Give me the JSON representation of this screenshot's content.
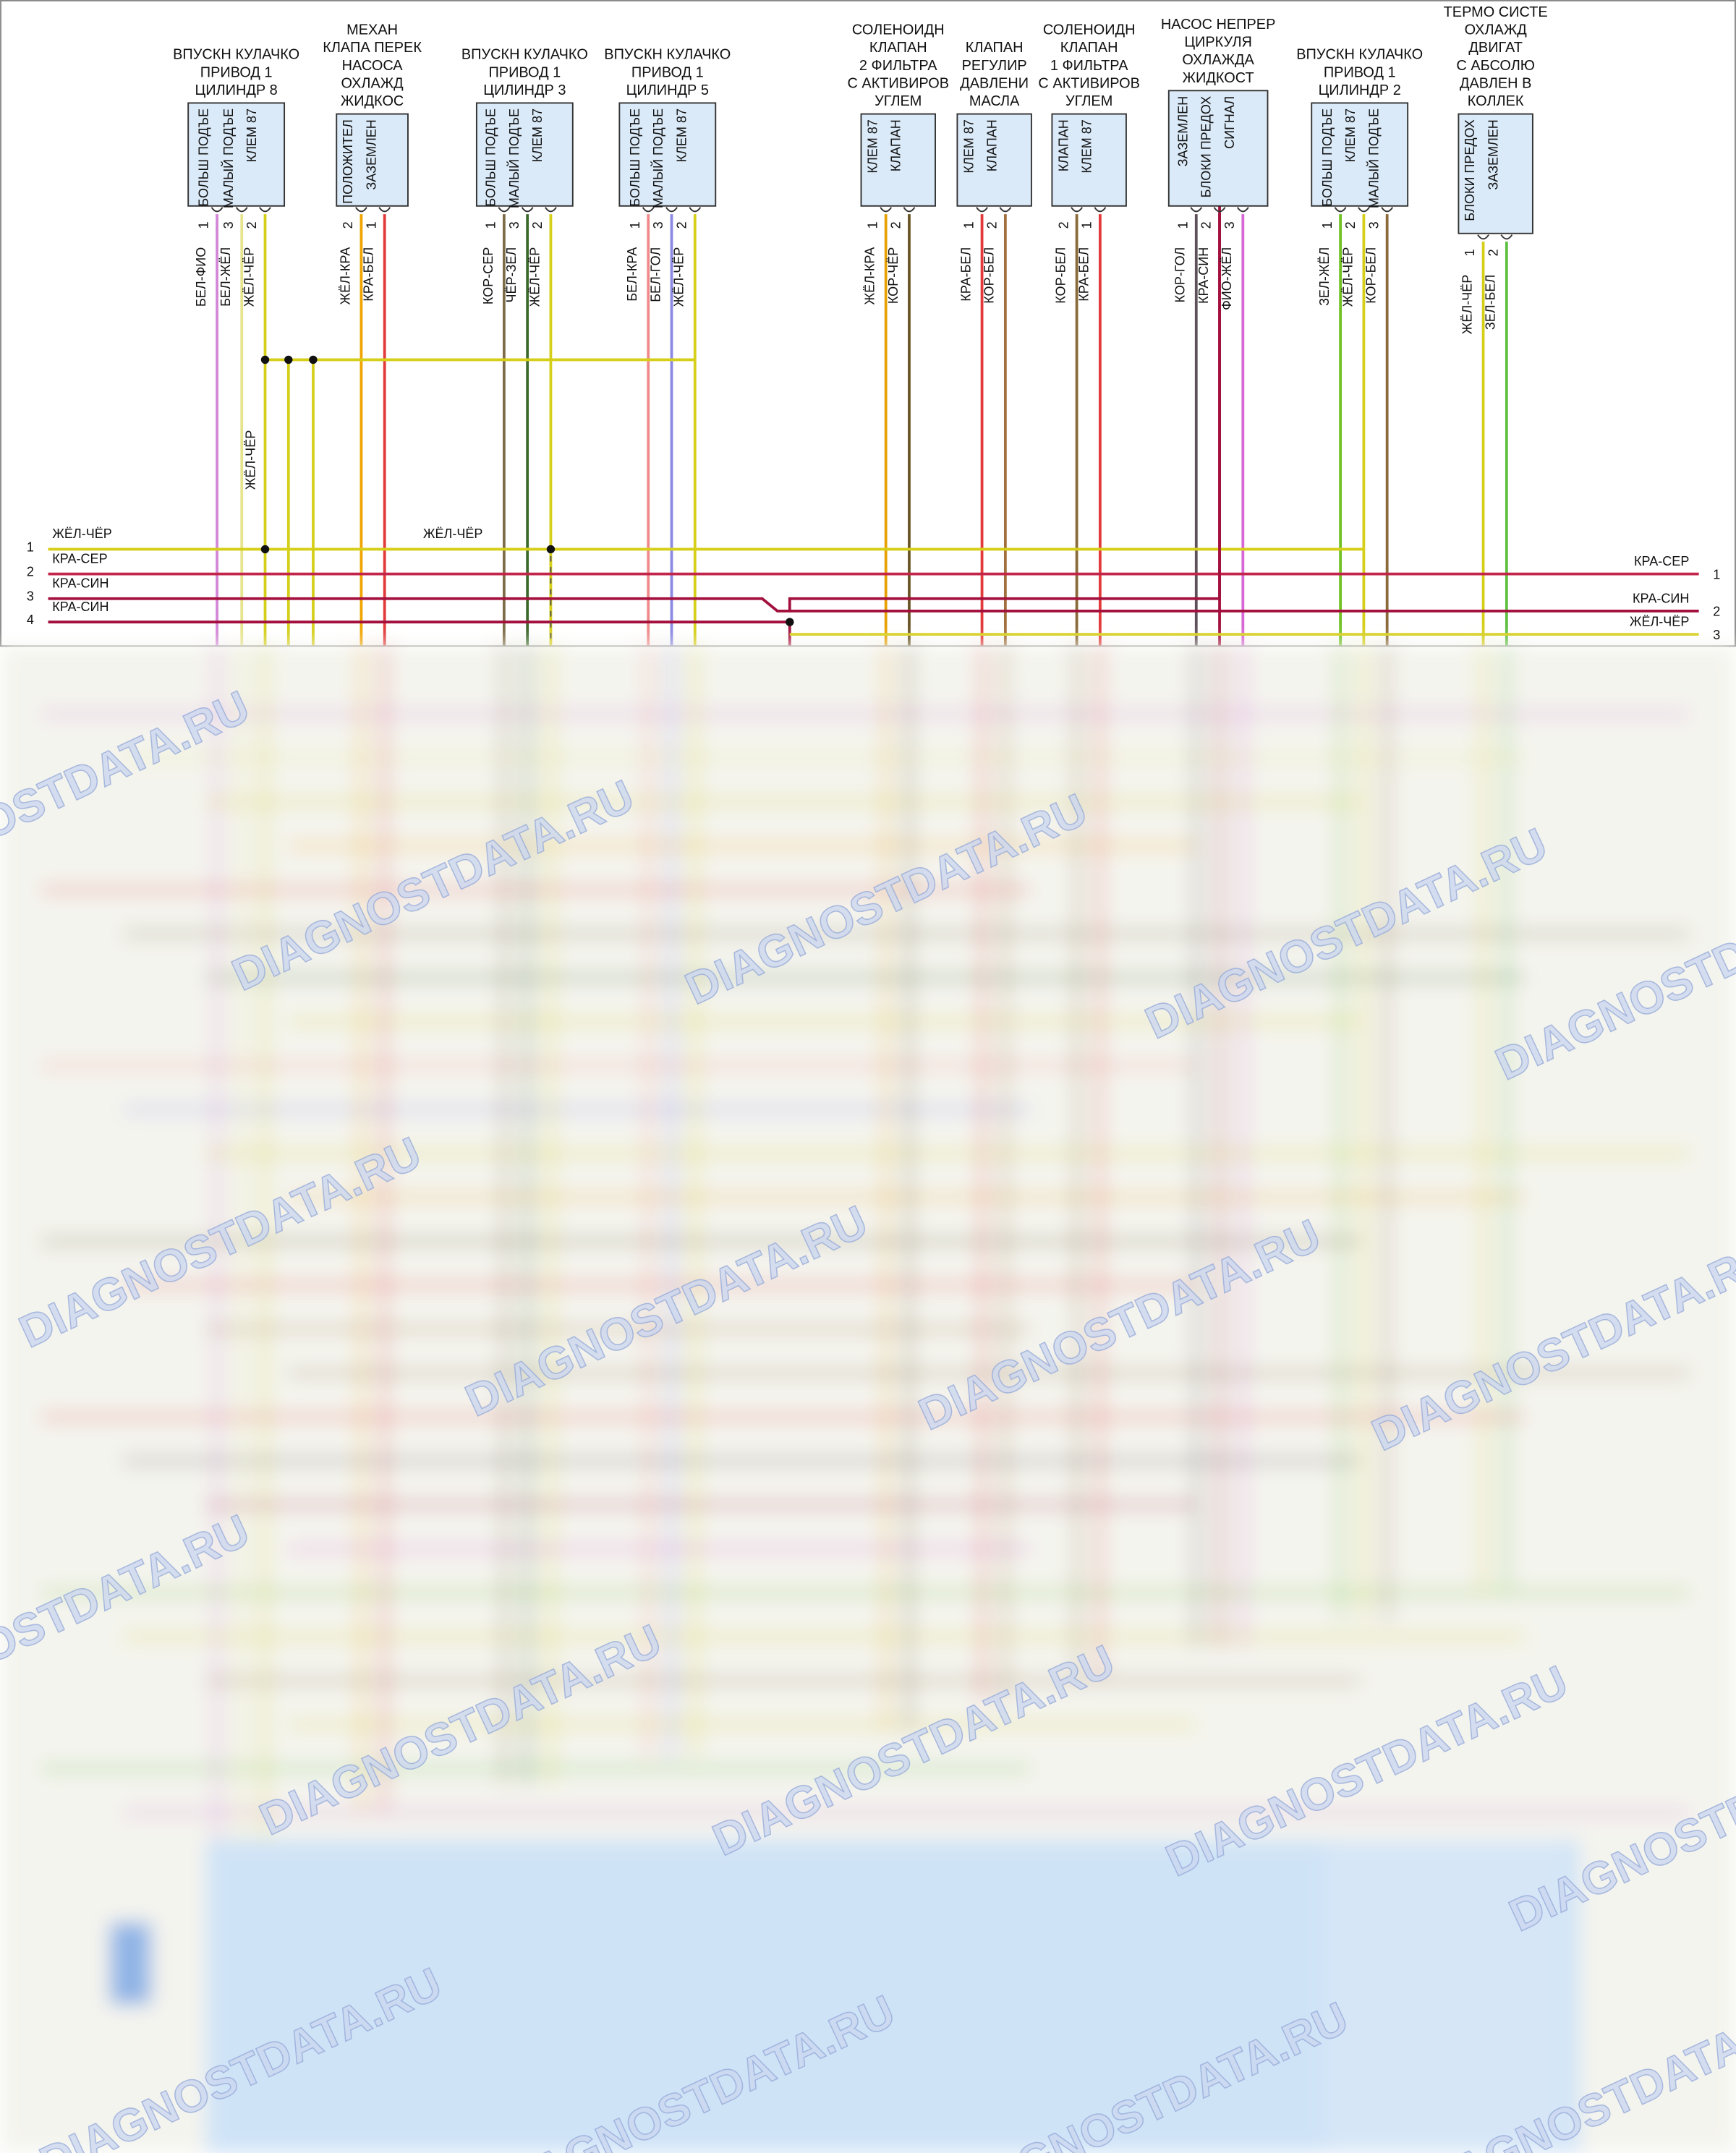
{
  "components": [
    {
      "title": [
        "ВПУСКН КУЛАЧКО",
        "ПРИВОД 1",
        "ЦИЛИНДР 8"
      ],
      "pins": [
        {
          "num": "1",
          "label": "БОЛЬШ ПОДЪЕ",
          "wire": "БЕЛ-ФИО",
          "color": "#d486d8"
        },
        {
          "num": "3",
          "label": "МАЛЫЙ ПОДЪЕ",
          "wire": "БЕЛ-ЖЁЛ",
          "color": "#e6e48e"
        },
        {
          "num": "2",
          "label": "КЛЕМ 87",
          "wire": "ЖЁЛ-ЧЁР",
          "color": "#d6cf1a"
        }
      ]
    },
    {
      "title": [
        "МЕХАН",
        "КЛАПА ПЕРЕК",
        "НАСОСА",
        "ОХЛАЖД",
        "ЖИДКОС"
      ],
      "pins": [
        {
          "num": "2",
          "label": "ПОЛОЖИТЕЛ",
          "wire": "ЖЁЛ-КРА",
          "color": "#f0a500"
        },
        {
          "num": "1",
          "label": "ЗАЗЕМЛЕН",
          "wire": "КРА-БЕЛ",
          "color": "#e23a3a"
        }
      ]
    },
    {
      "title": [
        "ВПУСКН КУЛАЧКО",
        "ПРИВОД 1",
        "ЦИЛИНДР 3"
      ],
      "pins": [
        {
          "num": "1",
          "label": "БОЛЬШ ПОДЪЕ",
          "wire": "КОР-СЕР",
          "color": "#7d6c48"
        },
        {
          "num": "3",
          "label": "МАЛЫЙ ПОДЪЕ",
          "wire": "ЧЁР-ЗЕЛ",
          "color": "#3c6a2c"
        },
        {
          "num": "2",
          "label": "КЛЕМ 87",
          "wire": "ЖЁЛ-ЧЁР",
          "color": "#d6cf1a"
        }
      ]
    },
    {
      "title": [
        "ВПУСКН КУЛАЧКО",
        "ПРИВОД 1",
        "ЦИЛИНДР 5"
      ],
      "pins": [
        {
          "num": "1",
          "label": "БОЛЬШ ПОДЪЕ",
          "wire": "БЕЛ-КРА",
          "color": "#f08a8a"
        },
        {
          "num": "3",
          "label": "МАЛЫЙ ПОДЪЕ",
          "wire": "БЕЛ-ГОЛ",
          "color": "#8a8ae4"
        },
        {
          "num": "2",
          "label": "КЛЕМ 87",
          "wire": "ЖЁЛ-ЧЁР",
          "color": "#d6cf1a"
        }
      ]
    },
    {
      "title": [
        "СОЛЕНОИДН",
        "КЛАПАН",
        "2 ФИЛЬТРА",
        "С АКТИВИРОВ",
        "УГЛЕМ"
      ],
      "pins": [
        {
          "num": "1",
          "label": "КЛЕМ 87",
          "wire": "ЖЁЛ-КРА",
          "color": "#e6a000"
        },
        {
          "num": "2",
          "label": "КЛАПАН",
          "wire": "КОР-ЧЁР",
          "color": "#6a5424"
        }
      ]
    },
    {
      "title": [
        "КЛАПАН",
        "РЕГУЛИР",
        "ДАВЛЕНИ",
        "МАСЛА"
      ],
      "pins": [
        {
          "num": "1",
          "label": "КЛЕМ 87",
          "wire": "КРА-БЕЛ",
          "color": "#e23a3a"
        },
        {
          "num": "2",
          "label": "КЛАПАН",
          "wire": "КОР-БЕЛ",
          "color": "#a0703e"
        }
      ]
    },
    {
      "title": [
        "СОЛЕНОИДН",
        "КЛАПАН",
        "1 ФИЛЬТРА",
        "С АКТИВИРОВ",
        "УГЛЕМ"
      ],
      "pins": [
        {
          "num": "2",
          "label": "КЛАПАН",
          "wire": "КОР-БЕЛ",
          "color": "#8a6a3a"
        },
        {
          "num": "1",
          "label": "КЛЕМ 87",
          "wire": "КРА-БЕЛ",
          "color": "#e23a3a"
        }
      ]
    },
    {
      "title": [
        "НАСОС НЕПРЕР",
        "ЦИРКУЛЯ",
        "ОХЛАЖДА",
        "ЖИДКОСТ"
      ],
      "pins": [
        {
          "num": "1",
          "label": "ЗАЗЕМЛЕН",
          "wire": "КОР-ГОЛ",
          "color": "#5e5058"
        },
        {
          "num": "2",
          "label": "БЛОКИ ПРЕДОХ",
          "wire": "КРА-СИН",
          "color": "#a3103e"
        },
        {
          "num": "3",
          "label": "СИГНАЛ",
          "wire": "ФИО-ЖЁЛ",
          "color": "#d866d4"
        }
      ]
    },
    {
      "title": [
        "ВПУСКН КУЛАЧКО",
        "ПРИВОД 1",
        "ЦИЛИНДР 2"
      ],
      "pins": [
        {
          "num": "1",
          "label": "БОЛЬШ ПОДЪЕ",
          "wire": "ЗЕЛ-ЖЁЛ",
          "color": "#72c224"
        },
        {
          "num": "2",
          "label": "КЛЕМ 87",
          "wire": "ЖЁЛ-ЧЁР",
          "color": "#d6cf1a"
        },
        {
          "num": "3",
          "label": "МАЛЫЙ ПОДЪЕ",
          "wire": "КОР-БЕЛ",
          "color": "#8a6a3a"
        }
      ]
    },
    {
      "title": [
        "ТЕРМО СИСТЕ",
        "ОХЛАЖД",
        "ДВИГАТ",
        "С АБСОЛЮ",
        "ДАВЛЕН В",
        "КОЛЛЕК"
      ],
      "pins": [
        {
          "num": "1",
          "label": "БЛОКИ ПРЕДОХ",
          "wire": "ЖЁЛ-ЧЁР",
          "color": "#d6cf1a"
        },
        {
          "num": "2",
          "label": "ЗАЗЕМЛЕН",
          "wire": "ЗЕЛ-БЕЛ",
          "color": "#5ec040"
        }
      ]
    }
  ],
  "left_lines": [
    {
      "num": "1",
      "wire": "ЖЁЛ-ЧЁР",
      "color": "#d6cf1a"
    },
    {
      "num": "2",
      "wire": "КРА-СЕР",
      "color": "#c3254a"
    },
    {
      "num": "3",
      "wire": "КРА-СИН",
      "color": "#a3103e"
    },
    {
      "num": "4",
      "wire": "КРА-СИН",
      "color": "#a3103e"
    }
  ],
  "right_lines": [
    {
      "num": "1",
      "wire": "КРА-СЕР",
      "color": "#c3254a"
    },
    {
      "num": "2",
      "wire": "КРА-СИН",
      "color": "#a3103e"
    },
    {
      "num": "3",
      "wire": "ЖЁЛ-ЧЁР",
      "color": "#d6cf1a"
    }
  ],
  "splice_labels": [
    "ЖЁЛ-ЧЁР",
    "ЖЁЛ-ЧЁР"
  ],
  "watermark": "DIAGNOSTDATA.RU"
}
